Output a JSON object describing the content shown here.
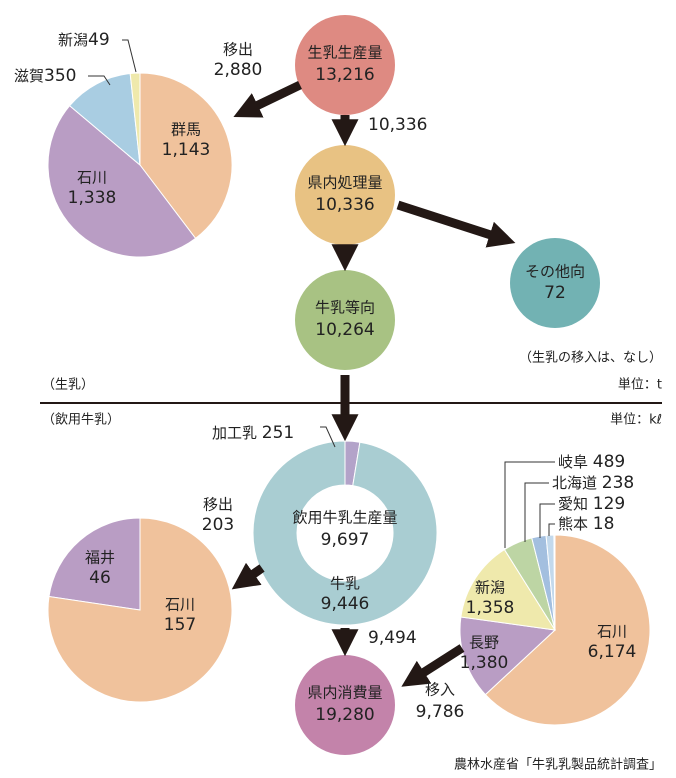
{
  "nodes": [
    {
      "label": "生乳生産量",
      "value": "13,216"
    },
    {
      "label": "県内処理量",
      "value": "10,336"
    },
    {
      "label": "牛乳等向",
      "value": "10,264"
    },
    {
      "label": "その他向",
      "value": "72"
    },
    {
      "label": "県内消費量",
      "value": "19,280"
    }
  ],
  "flows": [
    {
      "label": "移出",
      "value": "2,880"
    },
    {
      "value": "10,336"
    },
    {
      "value": "9,494"
    },
    {
      "label": "移入",
      "value": "9,786"
    },
    {
      "label": "移出",
      "value": "203"
    }
  ],
  "pies": [
    {
      "slices": [
        {
          "name": "群馬",
          "value": 1143,
          "value_label": "1,143",
          "color": "#f0c29c"
        },
        {
          "name": "石川",
          "value": 1338,
          "value_label": "1,338",
          "color": "#b99dc4"
        },
        {
          "name": "滋賀",
          "value": 350,
          "value_label": "350",
          "color": "#a9cde2"
        },
        {
          "name": "新潟",
          "value": 49,
          "value_label": "49",
          "color": "#efe9ac"
        }
      ]
    },
    {
      "title": "飲用牛乳生産量",
      "total": "9,697",
      "slices": [
        {
          "name": "加工乳",
          "value": 251,
          "value_label": "251",
          "color": "#b3a3c9"
        },
        {
          "name": "牛乳",
          "value": 9446,
          "value_label": "9,446",
          "color": "#a9cdd2"
        }
      ]
    },
    {
      "slices": [
        {
          "name": "福井",
          "value": 46,
          "value_label": "46",
          "color": "#b99dc4"
        },
        {
          "name": "石川",
          "value": 157,
          "value_label": "157",
          "color": "#f0c29c"
        }
      ]
    },
    {
      "slices": [
        {
          "name": "石川",
          "value": 6174,
          "value_label": "6,174",
          "color": "#f0c29c"
        },
        {
          "name": "長野",
          "value": 1380,
          "value_label": "1,380",
          "color": "#b99dc4"
        },
        {
          "name": "新潟",
          "value": 1358,
          "value_label": "1,358",
          "color": "#efe9ac"
        },
        {
          "name": "岐阜",
          "value": 489,
          "value_label": "489",
          "color": "#bdd5a4"
        },
        {
          "name": "北海道",
          "value": 238,
          "value_label": "238",
          "color": "#a3bfdf"
        },
        {
          "name": "愛知",
          "value": 129,
          "value_label": "129",
          "color": "#c3d9ec"
        },
        {
          "name": "熊本",
          "value": 18,
          "value_label": "18",
          "color": "#dfe9f4"
        }
      ]
    }
  ],
  "notes": [
    "（生乳の移入は、なし）"
  ],
  "sections": [
    {
      "label": "（生乳）",
      "unit": "単位：t"
    },
    {
      "label": "（飲用牛乳）",
      "unit": "単位：kℓ"
    }
  ],
  "source": "農林水産省「牛乳乳製品統計調査」"
}
